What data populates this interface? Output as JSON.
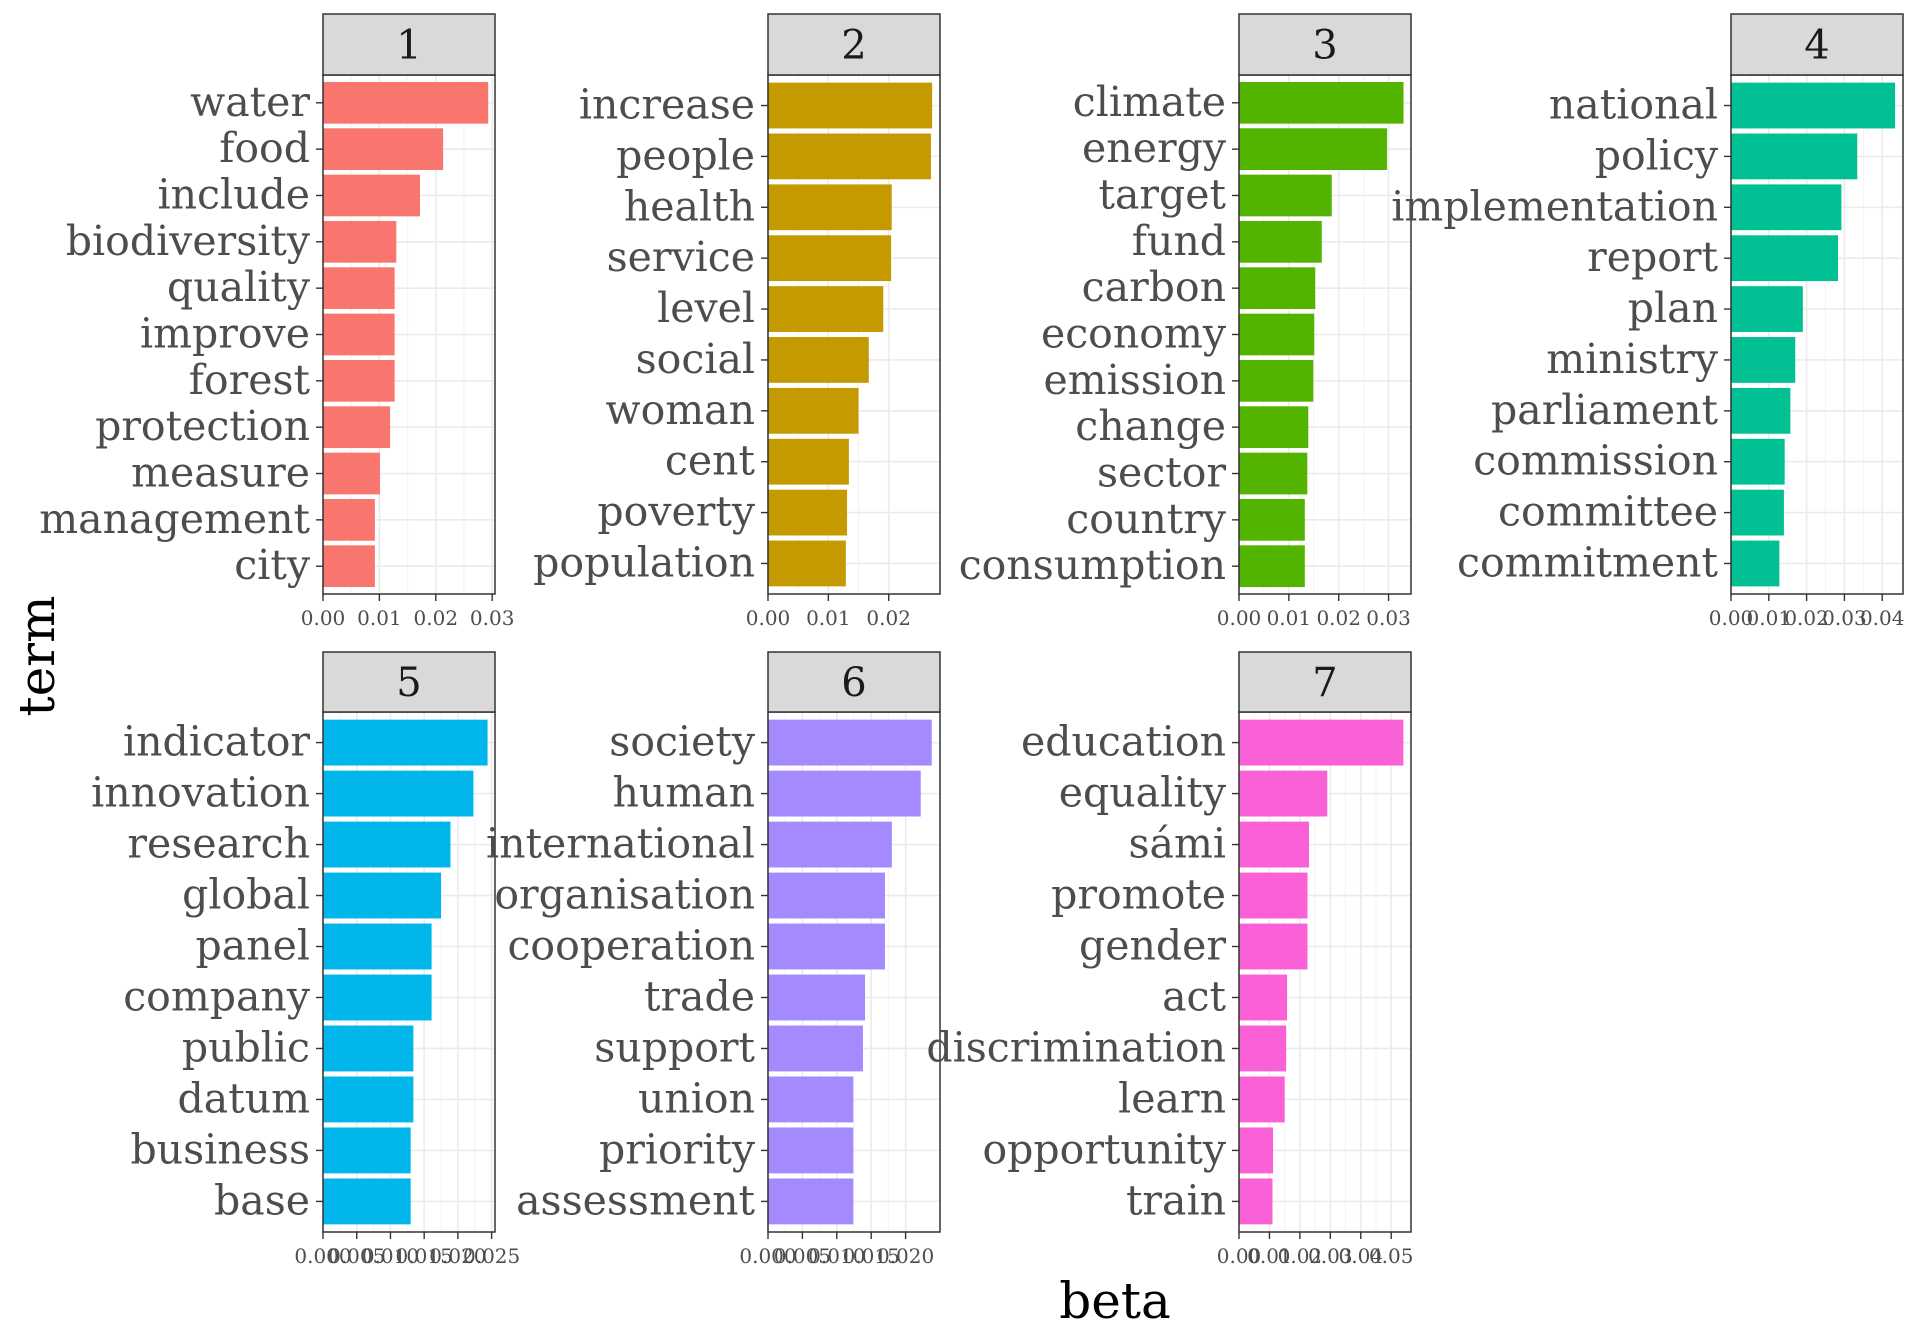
{
  "chart_data": {
    "type": "bar",
    "orientation": "horizontal",
    "facet_layout": "wrap, 4 columns, free scales",
    "xlabel": "beta",
    "ylabel": "term",
    "grid": true,
    "panels": [
      {
        "label": "1",
        "color": "#F8766D",
        "categories": [
          "water",
          "food",
          "include",
          "biodiversity",
          "quality",
          "improve",
          "forest",
          "protection",
          "measure",
          "management",
          "city"
        ],
        "values": [
          0.0293,
          0.0213,
          0.0172,
          0.013,
          0.0127,
          0.0127,
          0.0127,
          0.0119,
          0.0101,
          0.0092,
          0.0092
        ],
        "xlim": [
          0,
          0.0305
        ],
        "ticks": [
          0,
          0.01,
          0.02,
          0.03
        ],
        "tick_labels": [
          "0.00",
          "0.01",
          "0.02",
          "0.03"
        ]
      },
      {
        "label": "2",
        "color": "#C49A00",
        "categories": [
          "increase",
          "people",
          "health",
          "service",
          "level",
          "social",
          "woman",
          "cent",
          "poverty",
          "population"
        ],
        "values": [
          0.0272,
          0.027,
          0.0205,
          0.0204,
          0.0191,
          0.0167,
          0.015,
          0.0134,
          0.0131,
          0.0129
        ],
        "xlim": [
          0,
          0.0285
        ],
        "ticks": [
          0,
          0.01,
          0.02
        ],
        "tick_labels": [
          "0.00",
          "0.01",
          "0.02"
        ]
      },
      {
        "label": "3",
        "color": "#53B400",
        "categories": [
          "climate",
          "energy",
          "target",
          "fund",
          "carbon",
          "economy",
          "emission",
          "change",
          "sector",
          "country",
          "consumption"
        ],
        "values": [
          0.033,
          0.0297,
          0.0186,
          0.0166,
          0.0153,
          0.0151,
          0.0149,
          0.0139,
          0.0137,
          0.0132,
          0.0132
        ],
        "xlim": [
          0,
          0.0345
        ],
        "ticks": [
          0,
          0.01,
          0.02,
          0.03
        ],
        "tick_labels": [
          "0.00",
          "0.01",
          "0.02",
          "0.03"
        ]
      },
      {
        "label": "4",
        "color": "#00C094",
        "categories": [
          "national",
          "policy",
          "implementation",
          "report",
          "plan",
          "ministry",
          "parliament",
          "commission",
          "committee",
          "commitment"
        ],
        "values": [
          0.0434,
          0.0334,
          0.0292,
          0.0283,
          0.019,
          0.017,
          0.0157,
          0.0142,
          0.014,
          0.0128
        ],
        "xlim": [
          0,
          0.0455
        ],
        "ticks": [
          0,
          0.01,
          0.02,
          0.03,
          0.04
        ],
        "tick_labels": [
          "0.00",
          "0.01",
          "0.02",
          "0.03",
          "0.04"
        ]
      },
      {
        "label": "5",
        "color": "#00B6EB",
        "categories": [
          "indicator",
          "innovation",
          "research",
          "global",
          "panel",
          "company",
          "public",
          "datum",
          "business",
          "base"
        ],
        "values": [
          0.0244,
          0.0223,
          0.0189,
          0.0175,
          0.0161,
          0.0161,
          0.0134,
          0.0134,
          0.013,
          0.013
        ],
        "xlim": [
          0,
          0.0255
        ],
        "ticks": [
          0,
          0.005,
          0.01,
          0.015,
          0.02,
          0.025
        ],
        "tick_labels": [
          "0.000",
          "0.005",
          "0.010",
          "0.015",
          "0.020",
          "0.025"
        ]
      },
      {
        "label": "6",
        "color": "#A58AFF",
        "categories": [
          "society",
          "human",
          "international",
          "organisation",
          "cooperation",
          "trade",
          "support",
          "union",
          "priority",
          "assessment"
        ],
        "values": [
          0.0238,
          0.0222,
          0.018,
          0.017,
          0.017,
          0.0141,
          0.0138,
          0.0124,
          0.0124,
          0.0124
        ],
        "xlim": [
          0,
          0.025
        ],
        "ticks": [
          0,
          0.005,
          0.01,
          0.015,
          0.02
        ],
        "tick_labels": [
          "0.000",
          "0.005",
          "0.010",
          "0.015",
          "0.020"
        ]
      },
      {
        "label": "7",
        "color": "#FB61D7",
        "categories": [
          "education",
          "equality",
          "sámi",
          "promote",
          "gender",
          "act",
          "discrimination",
          "learn",
          "opportunity",
          "train"
        ],
        "values": [
          0.054,
          0.029,
          0.023,
          0.0225,
          0.0225,
          0.0158,
          0.0155,
          0.015,
          0.0112,
          0.011
        ],
        "xlim": [
          0,
          0.0565
        ],
        "ticks": [
          0,
          0.01,
          0.02,
          0.03,
          0.04,
          0.05
        ],
        "tick_labels": [
          "0.00",
          "0.01",
          "0.02",
          "0.03",
          "0.04",
          "0.05"
        ]
      }
    ]
  }
}
